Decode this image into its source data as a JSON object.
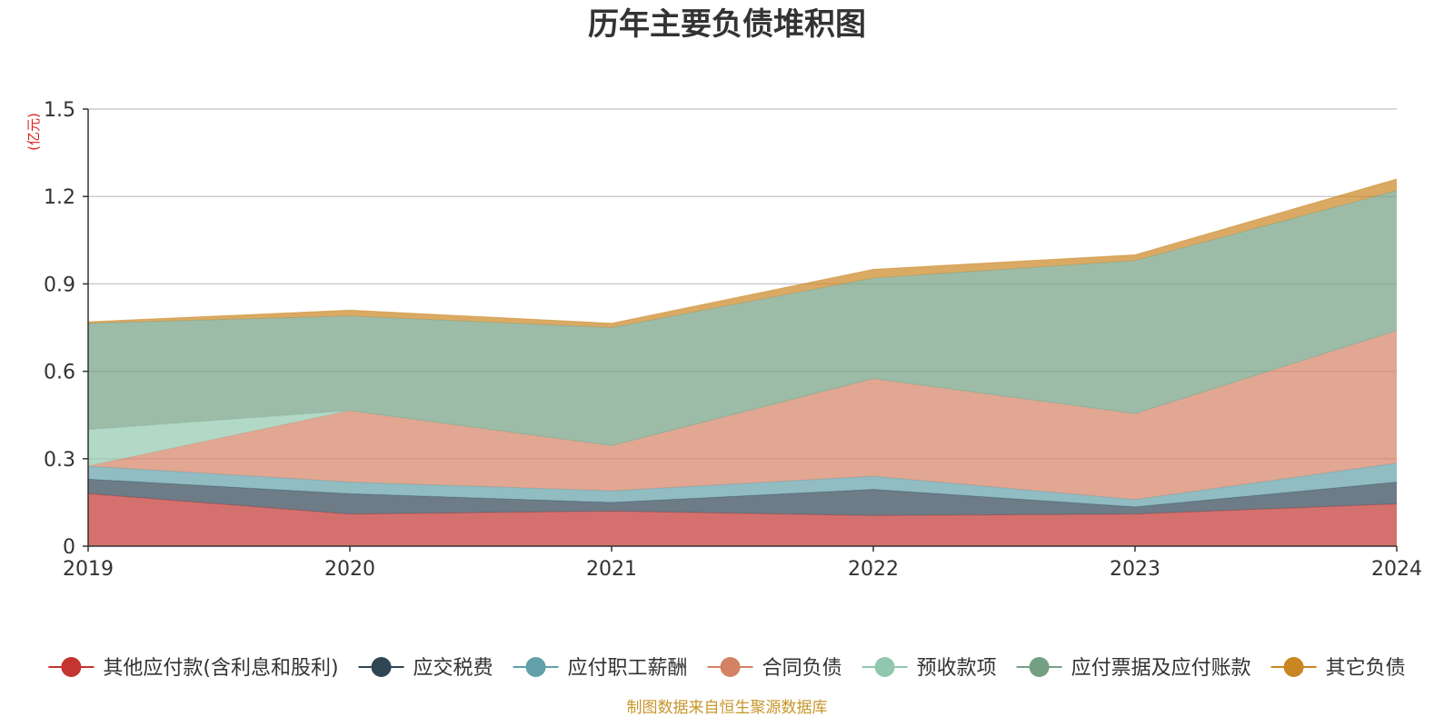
{
  "chart_data": {
    "type": "area",
    "title": "历年主要负债堆积图",
    "unit": "(亿元)",
    "x": [
      "2019",
      "2020",
      "2021",
      "2022",
      "2023",
      "2024"
    ],
    "y_ticks": [
      "0",
      "0.3",
      "0.6",
      "0.9",
      "1.2",
      "1.5"
    ],
    "ylim": [
      0,
      1.5
    ],
    "stacked": true,
    "grid": true,
    "legend_position": "bottom",
    "series": [
      {
        "name": "其他应付款(含利息和股利)",
        "color": "#c23531",
        "values": [
          0.18,
          0.11,
          0.12,
          0.105,
          0.11,
          0.145
        ]
      },
      {
        "name": "应交税费",
        "color": "#2f4554",
        "values": [
          0.05,
          0.07,
          0.03,
          0.09,
          0.025,
          0.075
        ]
      },
      {
        "name": "应付职工薪酬",
        "color": "#61a0a8",
        "values": [
          0.045,
          0.04,
          0.04,
          0.045,
          0.025,
          0.065
        ]
      },
      {
        "name": "合同负债",
        "color": "#d48265",
        "values": [
          0.0,
          0.245,
          0.155,
          0.335,
          0.295,
          0.455
        ]
      },
      {
        "name": "预收款项",
        "color": "#91c7ae",
        "values": [
          0.125,
          0.0,
          0.0,
          0.0,
          0.0,
          0.0
        ]
      },
      {
        "name": "应付票据及应付账款",
        "color": "#749f83",
        "values": [
          0.365,
          0.325,
          0.405,
          0.345,
          0.525,
          0.48
        ]
      },
      {
        "name": "其它负债",
        "color": "#ca8622",
        "values": [
          0.005,
          0.02,
          0.015,
          0.03,
          0.02,
          0.04
        ]
      }
    ]
  },
  "source": "制图数据来自恒生聚源数据库"
}
